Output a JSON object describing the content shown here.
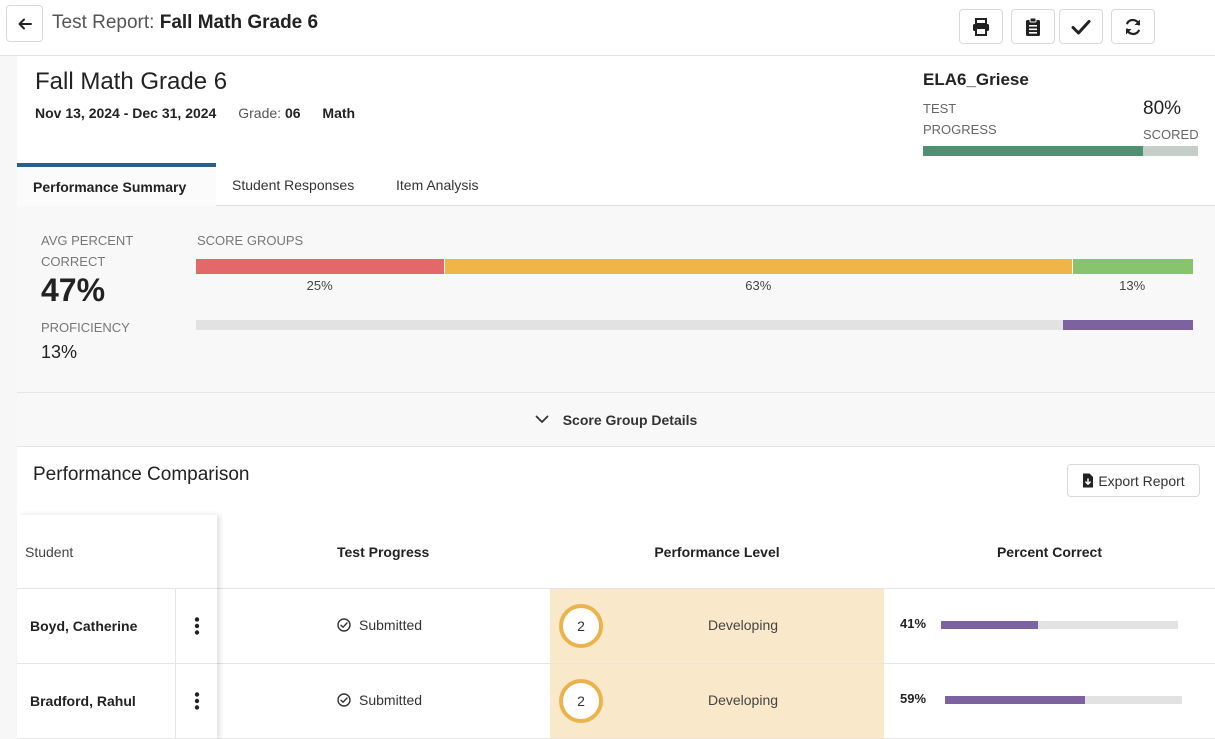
{
  "header": {
    "prefix": "Test Report:",
    "title": "Fall Math Grade 6"
  },
  "test": {
    "name": "Fall Math Grade 6",
    "dates": "Nov 13, 2024 - Dec 31, 2024",
    "grade_label": "Grade:",
    "grade": "06",
    "subject": "Math"
  },
  "class": {
    "name": "ELA6_Griese",
    "progress_label": "TEST PROGRESS",
    "scored_value": "80%",
    "scored_label": "SCORED",
    "scored_fraction": 0.8
  },
  "tabs": [
    {
      "label": "Performance Summary",
      "active": true
    },
    {
      "label": "Student Responses",
      "active": false
    },
    {
      "label": "Item Analysis",
      "active": false
    }
  ],
  "summary": {
    "avg_label": "AVG PERCENT CORRECT",
    "avg_value": "47%",
    "proficiency_label": "PROFICIENCY",
    "proficiency_value": "13%",
    "proficiency_fraction": 0.13,
    "score_groups_label": "SCORE GROUPS",
    "groups": [
      {
        "pct": "25%",
        "fraction": 0.25,
        "color": "#e2686a"
      },
      {
        "pct": "63%",
        "fraction": 0.63,
        "color": "#efb548"
      },
      {
        "pct": "13%",
        "fraction": 0.12,
        "color": "#88c46c"
      }
    ]
  },
  "score_group_details": "Score Group Details",
  "comparison": {
    "title": "Performance Comparison",
    "export_label": "Export Report",
    "columns": [
      "Student",
      "Test Progress",
      "Performance Level",
      "Percent Correct"
    ],
    "rows": [
      {
        "student": "Boyd, Catherine",
        "status": "Submitted",
        "level_num": "2",
        "level": "Developing",
        "pct": "41%",
        "pct_fraction": 0.41
      },
      {
        "student": "Bradford, Rahul",
        "status": "Submitted",
        "level_num": "2",
        "level": "Developing",
        "pct": "59%",
        "pct_fraction": 0.59
      }
    ]
  },
  "icons": [
    "arrow-left-icon",
    "print-icon",
    "clipboard-icon",
    "check-icon",
    "refresh-icon",
    "chevron-down-icon",
    "file-download-icon",
    "check-circle-icon",
    "kebab-icon"
  ]
}
